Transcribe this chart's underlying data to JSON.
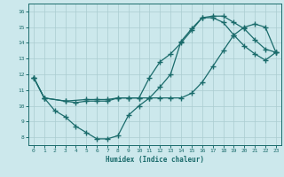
{
  "background_color": "#cce8ec",
  "grid_color": "#aaccd0",
  "line_color": "#1a6b6b",
  "xlabel": "Humidex (Indice chaleur)",
  "xlim": [
    -0.5,
    23.5
  ],
  "ylim": [
    7.5,
    16.5
  ],
  "xticks": [
    0,
    1,
    2,
    3,
    4,
    5,
    6,
    7,
    8,
    9,
    10,
    11,
    12,
    13,
    14,
    15,
    16,
    17,
    18,
    19,
    20,
    21,
    22,
    23
  ],
  "yticks": [
    8,
    9,
    10,
    11,
    12,
    13,
    14,
    15,
    16
  ],
  "curve1_x": [
    0,
    1,
    2,
    3,
    4,
    5,
    6,
    7,
    8,
    9,
    10,
    11,
    12,
    13,
    14,
    15,
    16,
    17,
    18,
    19,
    20,
    21,
    22,
    23
  ],
  "curve1_y": [
    11.8,
    10.5,
    9.7,
    9.3,
    8.7,
    8.3,
    7.9,
    7.9,
    8.1,
    9.4,
    10.0,
    10.5,
    11.2,
    12.0,
    14.1,
    14.9,
    15.6,
    15.7,
    15.7,
    15.3,
    14.9,
    14.2,
    13.6,
    13.4
  ],
  "curve2_x": [
    0,
    1,
    3,
    5,
    6,
    7,
    8,
    9,
    10,
    11,
    12,
    13,
    14,
    15,
    16,
    17,
    18,
    19,
    20,
    21,
    22,
    23
  ],
  "curve2_y": [
    11.8,
    10.5,
    10.3,
    10.4,
    10.4,
    10.4,
    10.5,
    10.5,
    10.5,
    11.8,
    12.8,
    13.3,
    14.0,
    14.8,
    15.6,
    15.6,
    15.3,
    14.5,
    13.8,
    13.3,
    12.9,
    13.4
  ],
  "curve3_x": [
    0,
    1,
    3,
    4,
    5,
    6,
    7,
    8,
    9,
    10,
    11,
    12,
    13,
    14,
    15,
    16,
    17,
    18,
    19,
    20,
    21,
    22,
    23
  ],
  "curve3_y": [
    11.8,
    10.5,
    10.3,
    10.2,
    10.3,
    10.3,
    10.3,
    10.5,
    10.5,
    10.5,
    10.5,
    10.5,
    10.5,
    10.5,
    10.8,
    11.5,
    12.5,
    13.5,
    14.5,
    15.0,
    15.2,
    15.0,
    13.4
  ]
}
